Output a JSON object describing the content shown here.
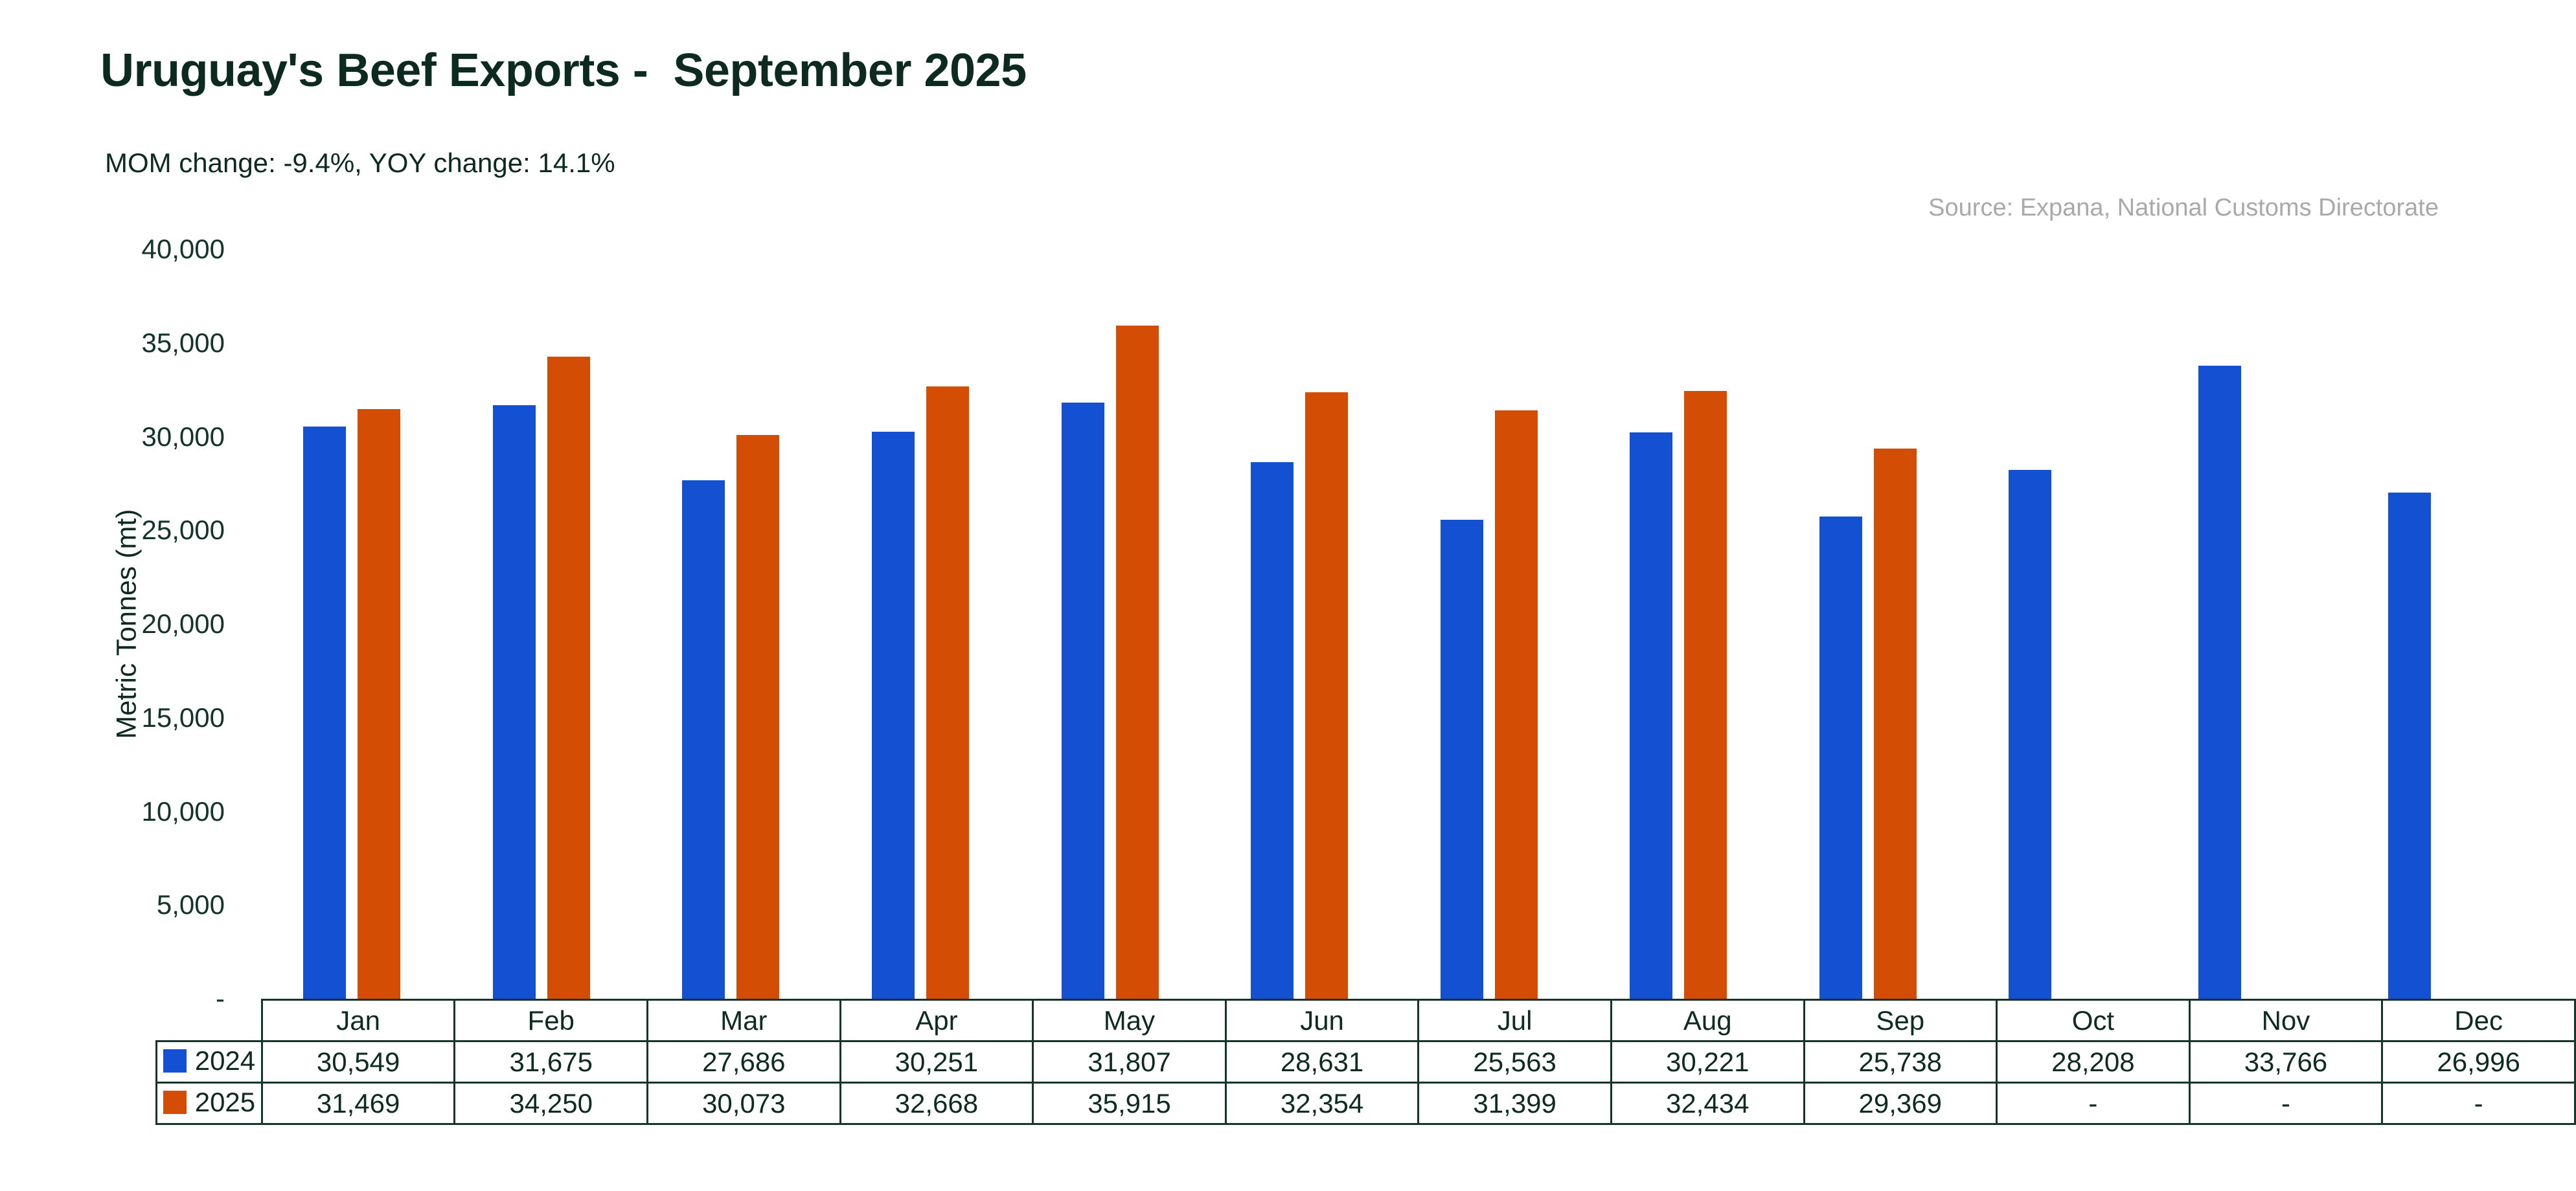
{
  "colors": {
    "text_dark": "#0e2b22",
    "title_dark": "#0d2a21",
    "text_gray": "#a9a9a9",
    "table_border": "#15352c",
    "series_2024_blue": "#1450d2",
    "series_2025_orange": "#d44d04",
    "background": "#ffffff"
  },
  "chart_data": {
    "type": "bar",
    "title": "Uruguay's Beef Exports -  September 2025",
    "subtitle": "MOM change: -9.4%, YOY change: 14.1%",
    "source_note": "Source: Expana, National Customs Directorate",
    "xlabel": "",
    "ylabel": "Metric Tonnes (mt)",
    "ylim": [
      0,
      40000
    ],
    "y_tick_interval": 5000,
    "y_tick_labels": [
      "40,000",
      "35,000",
      "30,000",
      "25,000",
      "20,000",
      "15,000",
      "10,000",
      "5,000",
      "-"
    ],
    "zero_tick_label": "-",
    "missing_value_label": "-",
    "grid": false,
    "legend_position": "table-rows-left",
    "categories": [
      "Jan",
      "Feb",
      "Mar",
      "Apr",
      "May",
      "Jun",
      "Jul",
      "Aug",
      "Sep",
      "Oct",
      "Nov",
      "Dec"
    ],
    "series": [
      {
        "name": "2024",
        "color": "#1450d2",
        "values": [
          30549,
          31675,
          27686,
          30251,
          31807,
          28631,
          25563,
          30221,
          25738,
          28208,
          33766,
          26996
        ]
      },
      {
        "name": "2025",
        "color": "#d44d04",
        "values": [
          31469,
          34250,
          30073,
          32668,
          35915,
          32354,
          31399,
          32434,
          29369,
          null,
          null,
          null
        ]
      }
    ]
  }
}
